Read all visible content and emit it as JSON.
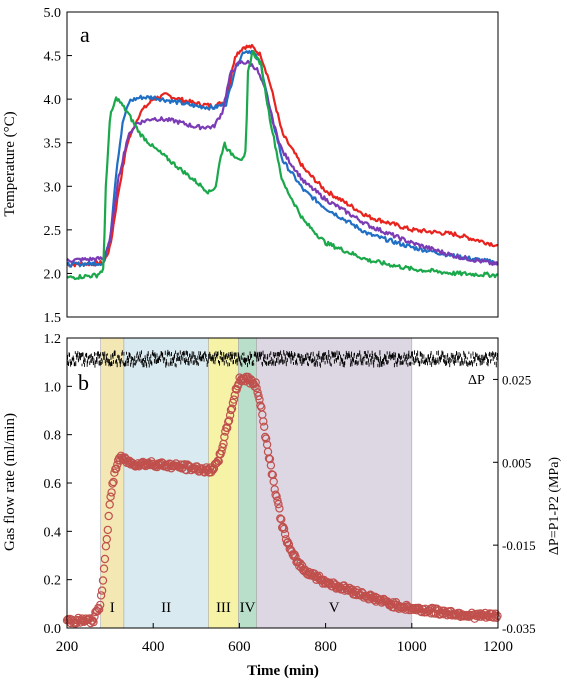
{
  "colors": {
    "red": "#e8231e",
    "blue": "#1f6fc4",
    "purple": "#7b3bb5",
    "green": "#1aa84a",
    "gas": "#c0504d",
    "region_I": "#f3e7b3",
    "region_II": "#d9eaf0",
    "region_III": "#f6f3a6",
    "region_IV": "#b9dfca",
    "region_V": "#ddd6e3"
  },
  "chart_data": [
    {
      "type": "line",
      "panel_label": "a",
      "xlabel": "",
      "ylabel": "Temperature (°C)",
      "xlim": [
        200,
        1200
      ],
      "ylim": [
        1.5,
        5.0
      ],
      "yticks": [
        "1.5",
        "2.0",
        "2.5",
        "3.0",
        "3.5",
        "4.0",
        "4.5",
        "5.0"
      ],
      "grid": false,
      "series": [
        {
          "color": "red",
          "x": [
            200,
            285,
            300,
            320,
            340,
            370,
            400,
            430,
            460,
            500,
            540,
            570,
            590,
            610,
            630,
            650,
            670,
            700,
            750,
            800,
            900,
            1000,
            1100,
            1200
          ],
          "y": [
            2.1,
            2.12,
            2.3,
            2.95,
            3.5,
            3.85,
            4.0,
            4.05,
            4.0,
            3.95,
            3.92,
            3.98,
            4.5,
            4.6,
            4.6,
            4.5,
            4.2,
            3.6,
            3.2,
            2.95,
            2.65,
            2.5,
            2.45,
            2.32
          ]
        },
        {
          "color": "blue",
          "x": [
            200,
            285,
            300,
            315,
            330,
            345,
            370,
            400,
            450,
            500,
            540,
            570,
            590,
            610,
            630,
            650,
            670,
            700,
            750,
            800,
            900,
            1000,
            1100,
            1200
          ],
          "y": [
            2.1,
            2.12,
            2.4,
            3.2,
            3.75,
            3.98,
            4.02,
            4.02,
            3.97,
            3.92,
            3.9,
            3.95,
            4.35,
            4.55,
            4.55,
            4.4,
            3.9,
            3.3,
            2.95,
            2.75,
            2.45,
            2.3,
            2.2,
            2.12
          ]
        },
        {
          "color": "purple",
          "x": [
            200,
            285,
            300,
            320,
            340,
            360,
            400,
            450,
            500,
            540,
            560,
            580,
            600,
            620,
            640,
            660,
            680,
            700,
            750,
            800,
            900,
            1000,
            1100,
            1200
          ],
          "y": [
            2.15,
            2.17,
            2.4,
            3.1,
            3.55,
            3.72,
            3.78,
            3.75,
            3.68,
            3.68,
            3.85,
            4.3,
            4.42,
            4.42,
            4.35,
            4.1,
            3.7,
            3.4,
            3.05,
            2.85,
            2.55,
            2.35,
            2.2,
            2.1
          ]
        },
        {
          "color": "green",
          "x": [
            200,
            270,
            285,
            290,
            300,
            315,
            340,
            370,
            400,
            450,
            500,
            530,
            545,
            555,
            565,
            575,
            590,
            610,
            615,
            620,
            630,
            650,
            670,
            700,
            750,
            800,
            900,
            1000,
            1100,
            1200
          ],
          "y": [
            1.95,
            1.98,
            2.05,
            3.0,
            3.8,
            4.02,
            3.85,
            3.6,
            3.45,
            3.25,
            3.05,
            2.93,
            3.0,
            3.3,
            3.5,
            3.4,
            3.35,
            3.3,
            3.4,
            4.3,
            4.55,
            4.4,
            3.8,
            3.05,
            2.6,
            2.35,
            2.15,
            2.05,
            2.0,
            1.98
          ]
        }
      ]
    },
    {
      "type": "scatter",
      "panel_label": "b",
      "xlabel": "Time (min)",
      "ylabel": "Gas flow rate (ml/min)",
      "y2label": "ΔP=P1-P2 (MPa)",
      "dp_label": "ΔP",
      "xlim": [
        200,
        1200
      ],
      "ylim": [
        0,
        1.2
      ],
      "y2lim": [
        -0.035,
        0.035
      ],
      "xticks": [
        "200",
        "400",
        "600",
        "800",
        "1000",
        "1200"
      ],
      "yticks": [
        "0.0",
        "0.2",
        "0.4",
        "0.6",
        "0.8",
        "1.0",
        "1.2"
      ],
      "y2ticks": [
        "0.025",
        "0.005",
        "-0.015",
        "-0.035"
      ],
      "grid": false,
      "regions": [
        {
          "label": "I",
          "from": 278,
          "to": 332,
          "color": "region_I"
        },
        {
          "label": "II",
          "from": 332,
          "to": 528,
          "color": "region_II"
        },
        {
          "label": "III",
          "from": 528,
          "to": 598,
          "color": "region_III"
        },
        {
          "label": "IV",
          "from": 598,
          "to": 640,
          "color": "region_IV"
        },
        {
          "label": "V",
          "from": 640,
          "to": 1000,
          "color": "region_V"
        }
      ],
      "gas_series": {
        "color": "gas",
        "x": [
          200,
          260,
          278,
          290,
          300,
          310,
          320,
          330,
          350,
          400,
          450,
          500,
          530,
          550,
          570,
          590,
          600,
          620,
          640,
          650,
          660,
          680,
          700,
          720,
          750,
          800,
          850,
          900,
          950,
          1000,
          1050,
          1100,
          1150,
          1200
        ],
        "y": [
          0.03,
          0.03,
          0.1,
          0.33,
          0.52,
          0.64,
          0.7,
          0.7,
          0.68,
          0.68,
          0.67,
          0.66,
          0.65,
          0.68,
          0.82,
          0.97,
          1.03,
          1.03,
          1.0,
          0.92,
          0.8,
          0.6,
          0.42,
          0.31,
          0.24,
          0.19,
          0.16,
          0.13,
          0.1,
          0.08,
          0.07,
          0.06,
          0.05,
          0.05
        ]
      },
      "dp_series": {
        "value": 0.03,
        "noise": 0.0015
      }
    }
  ]
}
